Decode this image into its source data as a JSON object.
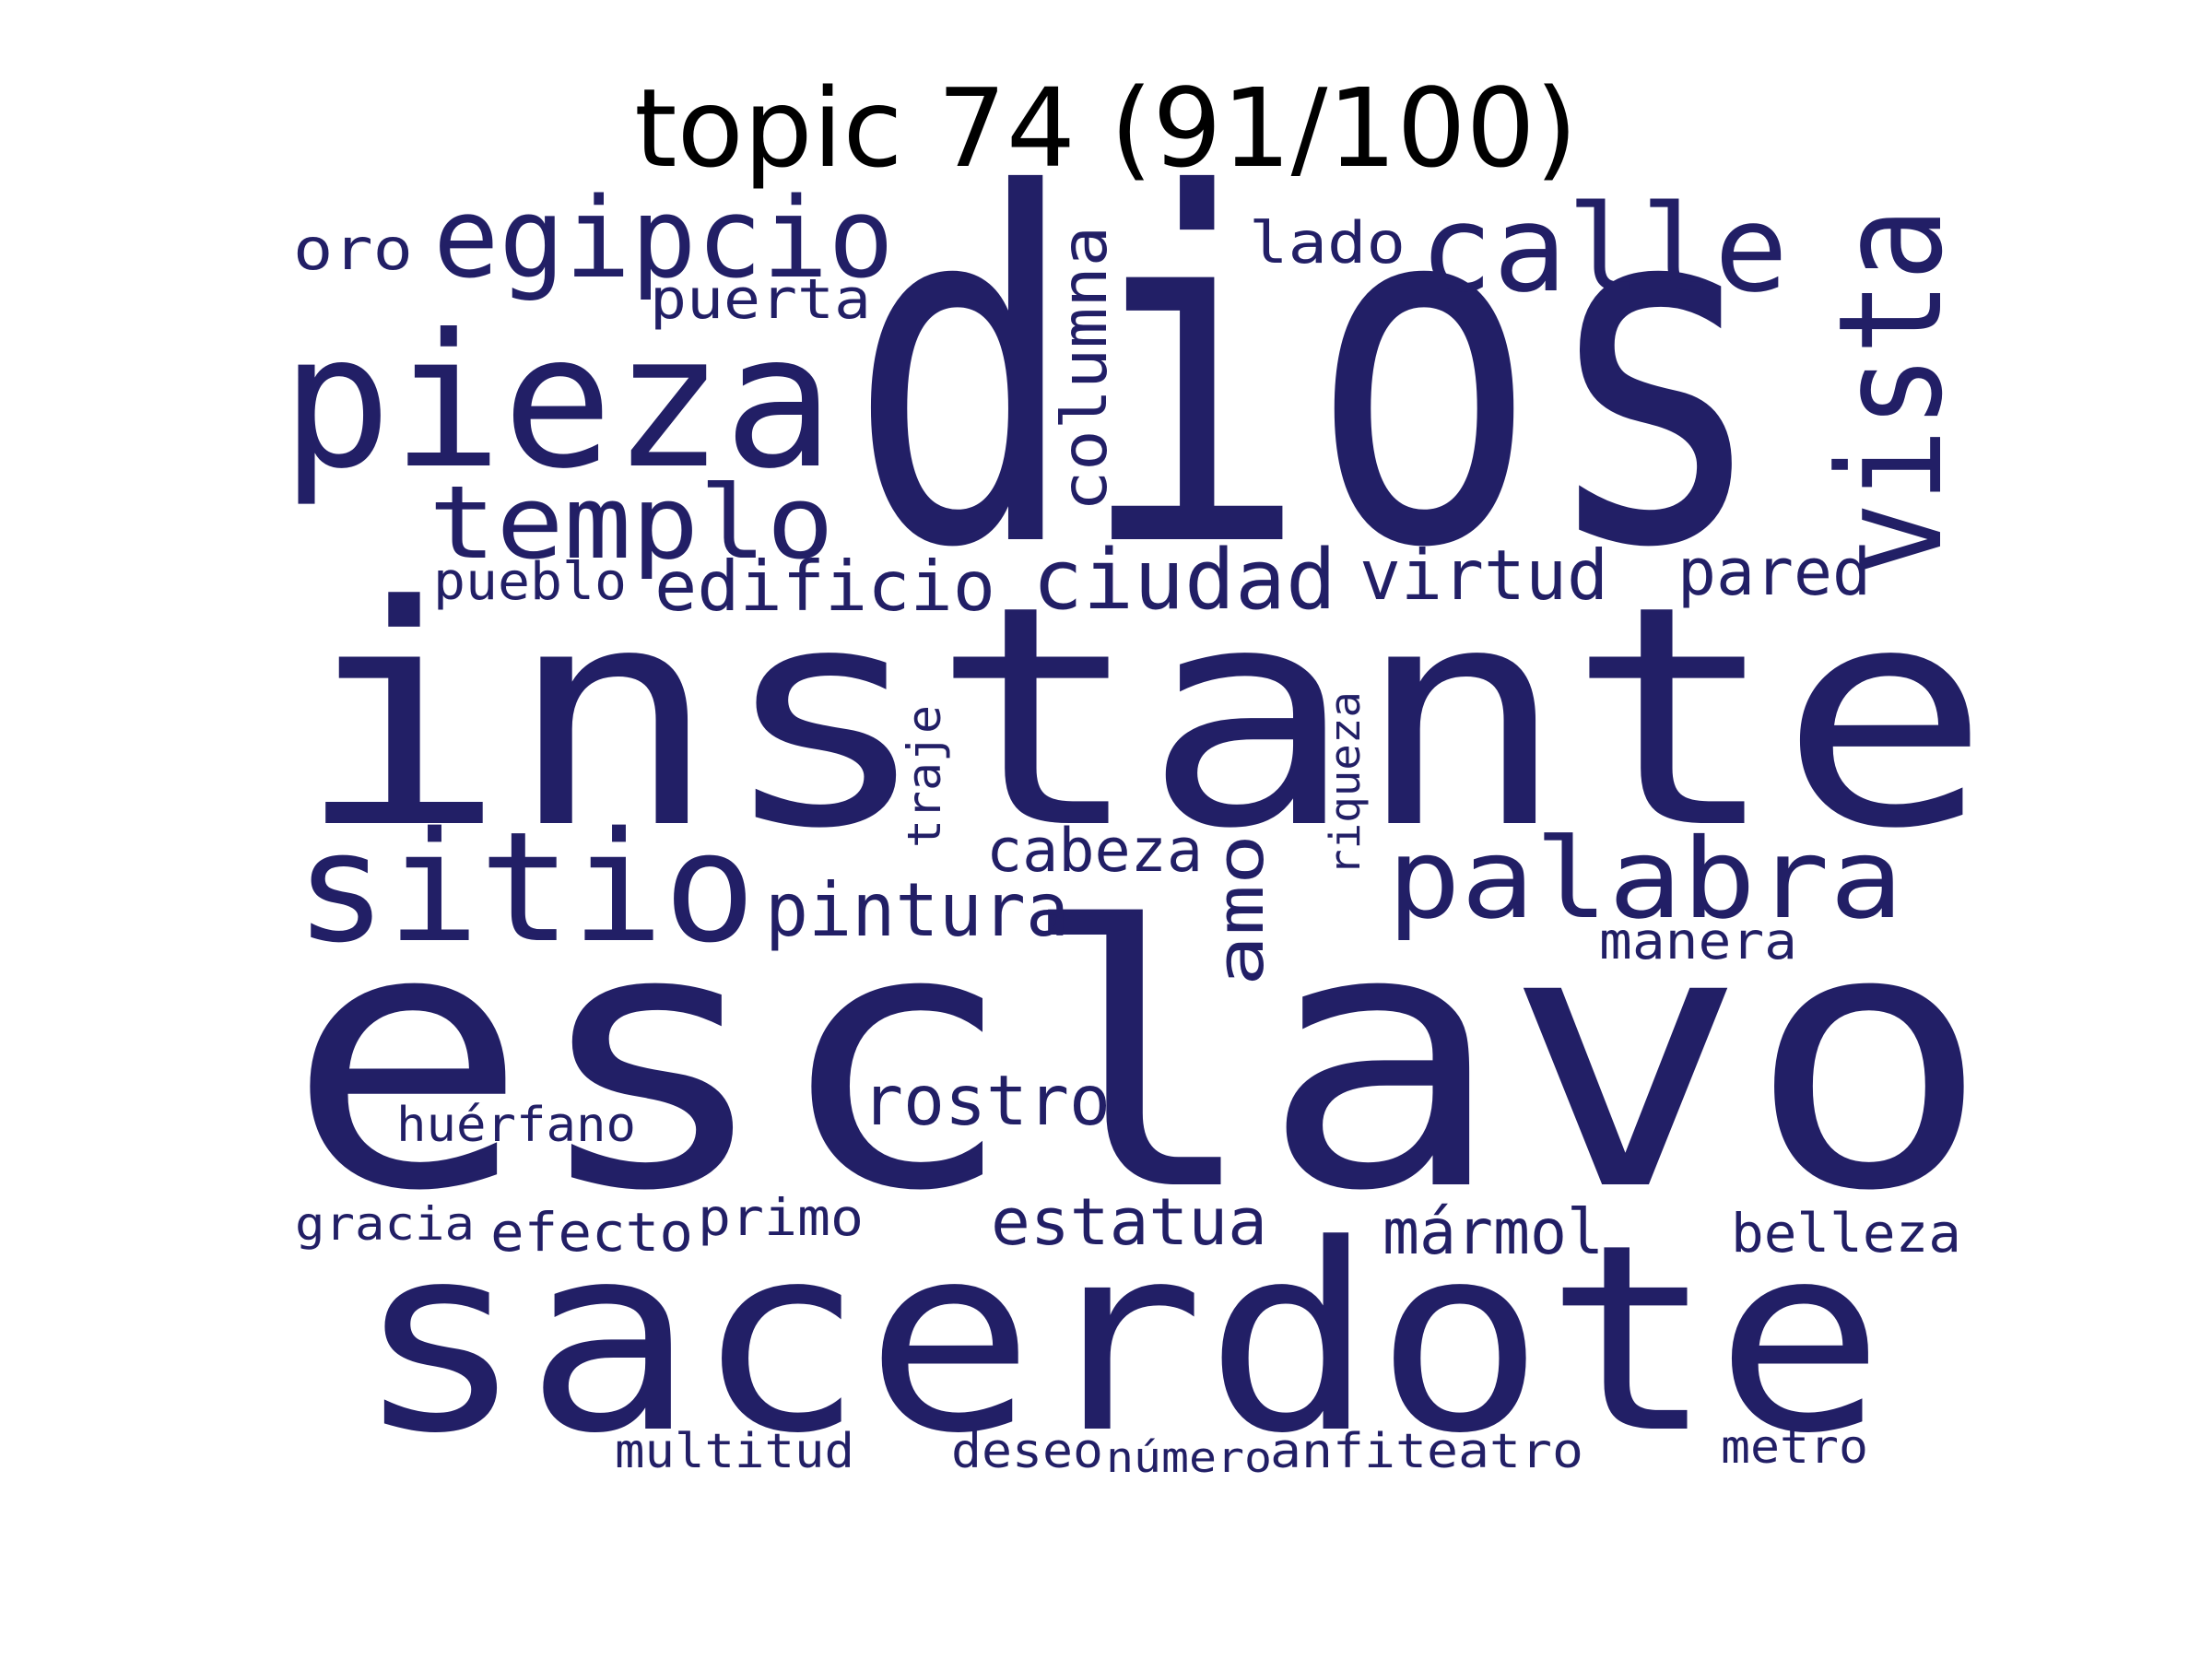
{
  "title": "topic 74 (91/100)",
  "word_color": "#221f66",
  "words": [
    "dios",
    "instante",
    "esclavo",
    "sacerdote",
    "pieza",
    "egipcio",
    "calle",
    "vista",
    "templo",
    "sitio",
    "palabra",
    "ciudad",
    "edificio",
    "virtud",
    "pared",
    "pintura",
    "rostro",
    "estatua",
    "mármol",
    "columna",
    "amo",
    "oro",
    "lado",
    "puerta",
    "pueblo",
    "cabeza",
    "manera",
    "traje",
    "riqueza",
    "huérfano",
    "gracia",
    "efecto",
    "primo",
    "belleza",
    "multitud",
    "deseo",
    "número",
    "anfiteatro",
    "metro"
  ]
}
